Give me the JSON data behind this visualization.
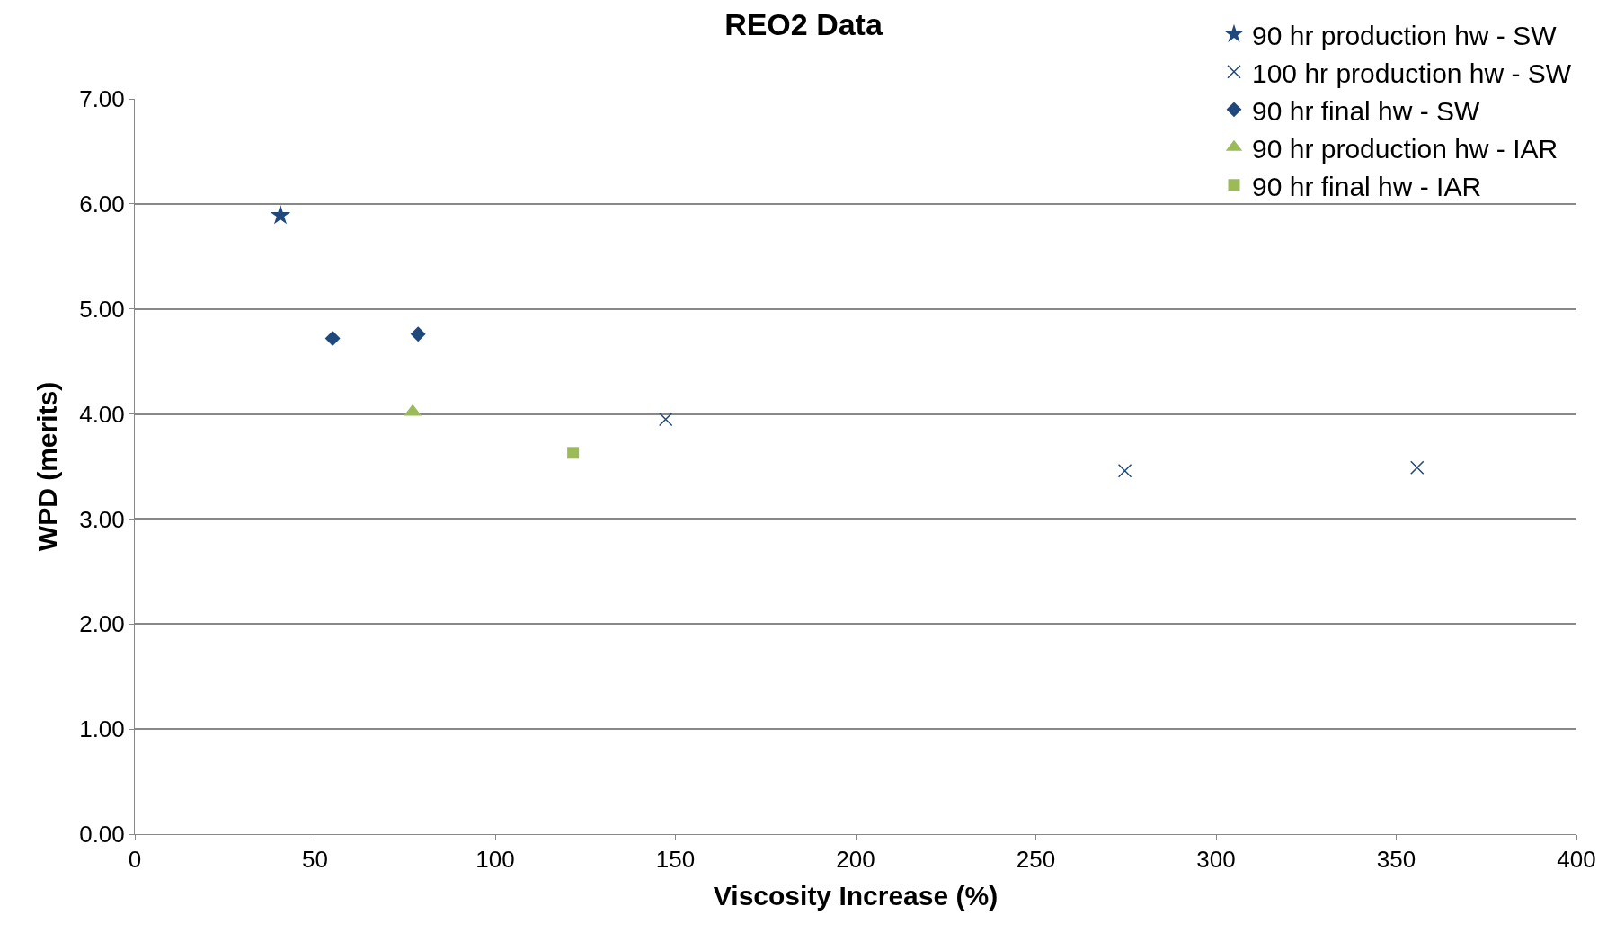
{
  "chart_data": {
    "type": "scatter",
    "title": "REO2 Data",
    "xlabel": "Viscosity Increase (%)",
    "ylabel": "WPD (merits)",
    "xlim": [
      0,
      400
    ],
    "xticks": [
      0,
      50,
      100,
      150,
      200,
      250,
      300,
      350,
      400
    ],
    "ylim": [
      0,
      7
    ],
    "yticks": [
      {
        "value": 0,
        "label": "0.00"
      },
      {
        "value": 1,
        "label": "1.00"
      },
      {
        "value": 2,
        "label": "2.00"
      },
      {
        "value": 3,
        "label": "3.00"
      },
      {
        "value": 4,
        "label": "4.00"
      },
      {
        "value": 5,
        "label": "5.00"
      },
      {
        "value": 6,
        "label": "6.00"
      },
      {
        "value": 7,
        "label": "7.00"
      }
    ],
    "grid": "y",
    "legend": "top right",
    "series": [
      {
        "name": "90 hr production hw - SW",
        "color": "#1f497d",
        "marker": "star",
        "x": [
          40.4
        ],
        "values": [
          5.89
        ]
      },
      {
        "name": "100 hr production hw - SW",
        "color": "#1f497d",
        "marker": "cross",
        "x": [
          147.3,
          274.7,
          355.8
        ],
        "values": [
          3.95,
          3.46,
          3.49
        ]
      },
      {
        "name": "90 hr final hw - SW",
        "color": "#1f497d",
        "marker": "diamond",
        "x": [
          54.9,
          78.6
        ],
        "values": [
          4.72,
          4.76
        ]
      },
      {
        "name": "90 hr production hw - IAR",
        "color": "#9bbb59",
        "marker": "triangle",
        "x": [
          77.1
        ],
        "values": [
          4.02
        ]
      },
      {
        "name": "90 hr final hw - IAR",
        "color": "#9bbb59",
        "marker": "square",
        "x": [
          121.6
        ],
        "values": [
          3.63
        ]
      }
    ]
  }
}
